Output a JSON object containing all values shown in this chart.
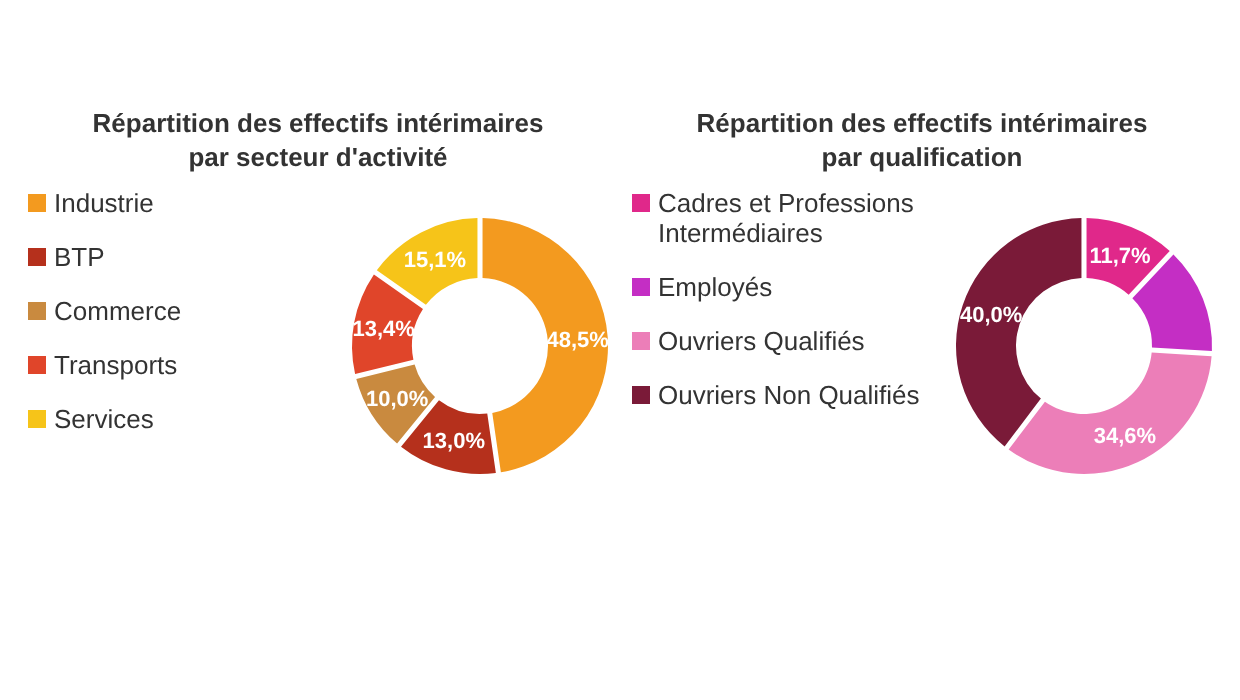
{
  "chart_data": [
    {
      "type": "donut",
      "title": "Répartition des effectifs intérimaires par secteur d'activité",
      "categories": [
        "Industrie",
        "BTP",
        "Commerce",
        "Transports",
        "Services"
      ],
      "values": [
        48.5,
        13.0,
        10.0,
        13.4,
        15.1
      ],
      "colors": [
        "#f39a1f",
        "#b5301c",
        "#c98a3f",
        "#e0452a",
        "#f6c419"
      ],
      "value_labels": [
        "48,5%",
        "13,0%",
        "10,0%",
        "13,4%",
        "15,1%"
      ],
      "legend": "left"
    },
    {
      "type": "donut",
      "title": "Répartition des effectifs intérimaires par qualification",
      "categories": [
        "Cadres et Professions Intermédiaires",
        "Employés",
        "Ouvriers Qualifiés",
        "Ouvriers Non Qualifiés"
      ],
      "values": [
        11.7,
        13.7,
        34.6,
        40.0
      ],
      "colors": [
        "#e0288a",
        "#c42ec4",
        "#ec7eb8",
        "#7a1a38"
      ],
      "value_labels": [
        "11,7%",
        null,
        "34,6%",
        "40,0%"
      ],
      "legend": "left"
    }
  ]
}
